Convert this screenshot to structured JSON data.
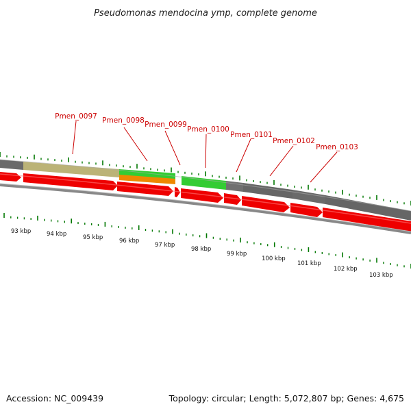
{
  "title": "Pseudomonas mendocina ymp, complete genome",
  "footer": {
    "accession": "Accession: NC_009439",
    "summary": "Topology: circular; Length: 5,072,807 bp; Genes: 4,675"
  },
  "colors": {
    "gene_arrow": "#ee0000",
    "gray_track": "#666666",
    "khaki_track": "#bbb377",
    "green_track": "#33cc33",
    "orange_track": "#ee8800",
    "tick": "#007700",
    "label": "#cc0000",
    "backbone": "#777777"
  },
  "gene_labels": [
    {
      "name": "Pmen_0097"
    },
    {
      "name": "Pmen_0098"
    },
    {
      "name": "Pmen_0099"
    },
    {
      "name": "Pmen_0100"
    },
    {
      "name": "Pmen_0101"
    },
    {
      "name": "Pmen_0102"
    },
    {
      "name": "Pmen_0103"
    }
  ],
  "kbp_labels": [
    "93 kbp",
    "94 kbp",
    "95 kbp",
    "96 kbp",
    "97 kbp",
    "98 kbp",
    "99 kbp",
    "100 kbp",
    "101 kbp",
    "102 kbp",
    "103 kbp"
  ]
}
